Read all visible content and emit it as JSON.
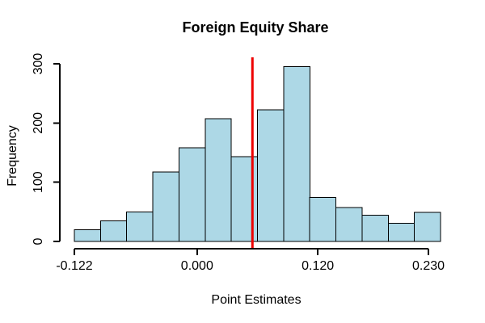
{
  "page": {
    "background": "#FFFFFF"
  },
  "chart_data": {
    "type": "histogram",
    "title": "Foreign Equity Share",
    "xlabel": "Point Estimates",
    "ylabel": "Frequency",
    "ylim": [
      0,
      300
    ],
    "xlim": [
      -0.122,
      0.242
    ],
    "bins": {
      "start": -0.122,
      "width": 0.026,
      "count": 14
    },
    "frequencies": [
      20,
      35,
      50,
      117,
      158,
      207,
      143,
      222,
      295,
      74,
      57,
      44,
      31,
      49
    ],
    "x_tick_values": [
      -0.122,
      0,
      0.12,
      0.23
    ],
    "x_tick_labels": [
      "-0.122",
      "0.000",
      "0.120",
      "0.230"
    ],
    "y_tick_values": [
      0,
      100,
      200,
      300
    ],
    "y_tick_labels": [
      "0",
      "100",
      "200",
      "300"
    ],
    "vline": {
      "value": 0.055,
      "color": "#EE0000"
    },
    "colors": {
      "bar_fill": "#ADD8E6",
      "bar_border": "#000000",
      "axis": "#000000",
      "text": "#000000"
    },
    "grid": false,
    "legend": null
  }
}
